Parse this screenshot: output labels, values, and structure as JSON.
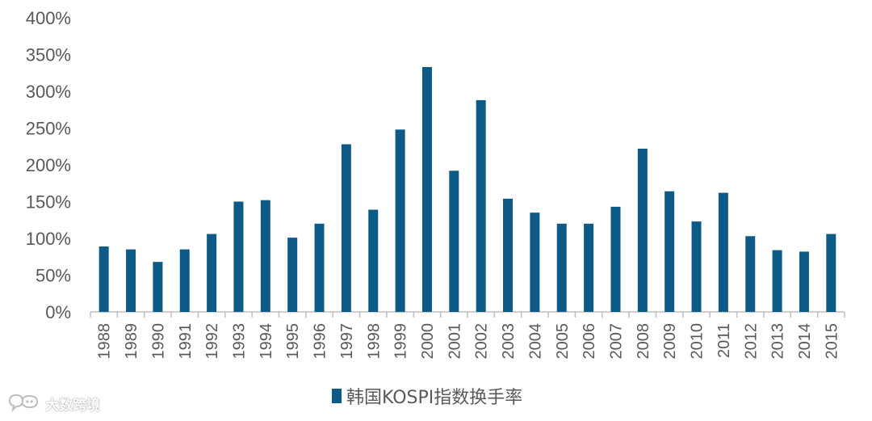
{
  "chart_data": {
    "type": "bar",
    "categories": [
      "1988",
      "1989",
      "1990",
      "1991",
      "1992",
      "1993",
      "1994",
      "1995",
      "1996",
      "1997",
      "1998",
      "1999",
      "2000",
      "2001",
      "2002",
      "2003",
      "2004",
      "2005",
      "2006",
      "2007",
      "2008",
      "2009",
      "2010",
      "2011",
      "2012",
      "2013",
      "2014",
      "2015"
    ],
    "series": [
      {
        "name": "韩国KOSPI指数换手率",
        "values": [
          89,
          85,
          68,
          85,
          106,
          150,
          152,
          101,
          120,
          228,
          139,
          248,
          333,
          192,
          288,
          154,
          135,
          120,
          120,
          143,
          222,
          164,
          123,
          162,
          103,
          84,
          82,
          106
        ]
      }
    ],
    "yticks": [
      "0%",
      "50%",
      "100%",
      "150%",
      "200%",
      "250%",
      "300%",
      "350%",
      "400%"
    ],
    "ylim": [
      0,
      400
    ],
    "y_unit": "%",
    "title": "",
    "xlabel": "",
    "ylabel": "",
    "legend_position": "bottom",
    "grid": false,
    "bar_color": "#0e5a87",
    "axis_color": "#bfbfbf",
    "text_color": "#595959"
  },
  "legend": {
    "label": "韩国KOSPI指数换手率"
  },
  "watermark": {
    "text": "大数跨境",
    "icon": "speech-bubble-logo-icon"
  }
}
